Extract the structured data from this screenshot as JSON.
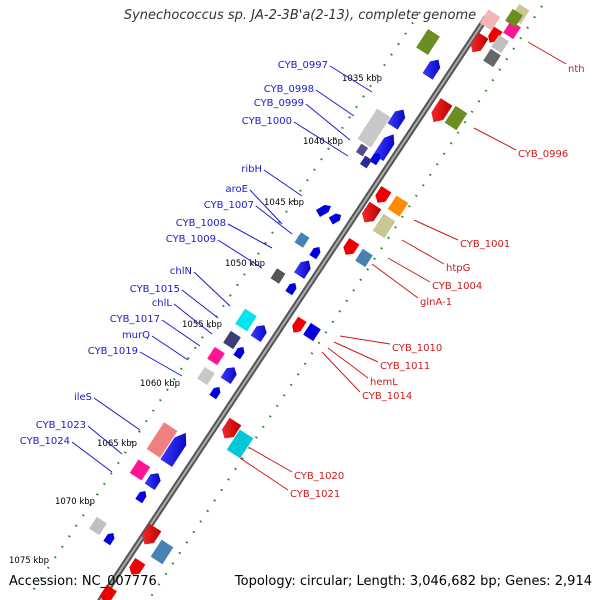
{
  "title": "Synechococcus sp. JA-2-3B'a(2-13), complete genome",
  "footer": {
    "accession": "Accession: NC_007776",
    "summary": "Topology: circular; Length: 3,046,682 bp; Genes: 2,914"
  },
  "colors": {
    "backbone": "#888888",
    "ticks": "#228B22",
    "left_label": "#1a1acc",
    "right_label": "#cc1a1a",
    "forward_gene": "#0000ee",
    "reverse_gene": "#ee0000"
  },
  "kbp_ticks": [
    "1035 kbp",
    "1040 kbp",
    "1045 kbp",
    "1050 kbp",
    "1055 kbp",
    "1060 kbp",
    "1065 kbp",
    "1070 kbp",
    "1075 kbp"
  ],
  "left_labels": [
    "CYB_0997",
    "CYB_0998",
    "CYB_0999",
    "CYB_1000",
    "ribH",
    "aroE",
    "CYB_1007",
    "CYB_1008",
    "CYB_1009",
    "chlN",
    "CYB_1015",
    "chlL",
    "CYB_1017",
    "murQ",
    "CYB_1019",
    "ileS",
    "CYB_1023",
    "CYB_1024"
  ],
  "right_labels": [
    "nth",
    "CYB_0996",
    "CYB_1001",
    "htpG",
    "CYB_1004",
    "glnA-1",
    "CYB_1010",
    "CYB_1011",
    "hemL",
    "CYB_1014",
    "CYB_1020",
    "CYB_1021"
  ]
}
